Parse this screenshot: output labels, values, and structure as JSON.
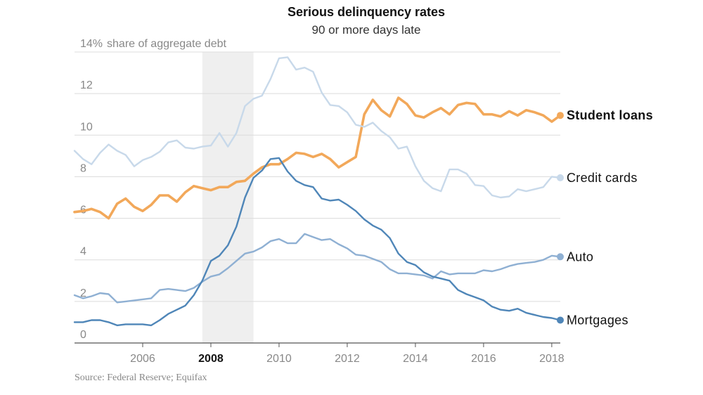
{
  "chart_data": {
    "type": "line",
    "title": "Serious delinquency rates",
    "subtitle": "90 or more days late",
    "ylabel": "share of aggregate debt",
    "ylim": [
      0,
      14
    ],
    "y_ticks": [
      0,
      2,
      4,
      6,
      8,
      10,
      12,
      14
    ],
    "y_tick_labels": [
      "0",
      "2",
      "4",
      "6",
      "8",
      "10",
      "12",
      "14%"
    ],
    "xlim": [
      2004.0,
      2018.25
    ],
    "x_ticks": [
      2006,
      2008,
      2010,
      2012,
      2014,
      2016,
      2018
    ],
    "x_tick_labels": [
      "2006",
      "2008",
      "2010",
      "2012",
      "2014",
      "2016",
      "2018"
    ],
    "highlighted_tick": "2008",
    "recession_shade": [
      2007.75,
      2009.25
    ],
    "grid": true,
    "legend": "end-of-line labels",
    "source": "Source: Federal Reserve; Equifax",
    "series": [
      {
        "name": "Student loans",
        "color": "#f2a85a",
        "bold_label": true,
        "x": [
          2004.0,
          2004.25,
          2004.5,
          2004.75,
          2005.0,
          2005.25,
          2005.5,
          2005.75,
          2006.0,
          2006.25,
          2006.5,
          2006.75,
          2007.0,
          2007.25,
          2007.5,
          2007.75,
          2008.0,
          2008.25,
          2008.5,
          2008.75,
          2009.0,
          2009.25,
          2009.5,
          2009.75,
          2010.0,
          2010.25,
          2010.5,
          2010.75,
          2011.0,
          2011.25,
          2011.5,
          2011.75,
          2012.0,
          2012.25,
          2012.5,
          2012.75,
          2013.0,
          2013.25,
          2013.5,
          2013.75,
          2014.0,
          2014.25,
          2014.5,
          2014.75,
          2015.0,
          2015.25,
          2015.5,
          2015.75,
          2016.0,
          2016.25,
          2016.5,
          2016.75,
          2017.0,
          2017.25,
          2017.5,
          2017.75,
          2018.0,
          2018.25
        ],
        "values": [
          6.3,
          6.35,
          6.45,
          6.3,
          6.0,
          6.7,
          6.95,
          6.55,
          6.35,
          6.65,
          7.1,
          7.1,
          6.8,
          7.25,
          7.55,
          7.45,
          7.35,
          7.5,
          7.5,
          7.75,
          7.8,
          8.15,
          8.45,
          8.6,
          8.6,
          8.85,
          9.15,
          9.1,
          8.95,
          9.1,
          8.85,
          8.45,
          8.7,
          8.95,
          11.0,
          11.7,
          11.2,
          10.9,
          11.8,
          11.5,
          10.95,
          10.85,
          11.1,
          11.3,
          11.0,
          11.45,
          11.55,
          11.5,
          11.0,
          11.0,
          10.9,
          11.15,
          10.95,
          11.2,
          11.1,
          10.95,
          10.65,
          10.95
        ]
      },
      {
        "name": "Credit cards",
        "color": "#c8d9ea",
        "bold_label": false,
        "x": [
          2004.0,
          2004.25,
          2004.5,
          2004.75,
          2005.0,
          2005.25,
          2005.5,
          2005.75,
          2006.0,
          2006.25,
          2006.5,
          2006.75,
          2007.0,
          2007.25,
          2007.5,
          2007.75,
          2008.0,
          2008.25,
          2008.5,
          2008.75,
          2009.0,
          2009.25,
          2009.5,
          2009.75,
          2010.0,
          2010.25,
          2010.5,
          2010.75,
          2011.0,
          2011.25,
          2011.5,
          2011.75,
          2012.0,
          2012.25,
          2012.5,
          2012.75,
          2013.0,
          2013.25,
          2013.5,
          2013.75,
          2014.0,
          2014.25,
          2014.5,
          2014.75,
          2015.0,
          2015.25,
          2015.5,
          2015.75,
          2016.0,
          2016.25,
          2016.5,
          2016.75,
          2017.0,
          2017.25,
          2017.5,
          2017.75,
          2018.0,
          2018.25
        ],
        "values": [
          9.25,
          8.85,
          8.6,
          9.15,
          9.55,
          9.25,
          9.05,
          8.5,
          8.8,
          8.95,
          9.2,
          9.65,
          9.75,
          9.4,
          9.35,
          9.45,
          9.5,
          10.1,
          9.45,
          10.1,
          11.4,
          11.75,
          11.9,
          12.7,
          13.7,
          13.75,
          13.15,
          13.25,
          13.05,
          12.05,
          11.45,
          11.4,
          11.1,
          10.5,
          10.4,
          10.6,
          10.2,
          9.9,
          9.35,
          9.45,
          8.5,
          7.8,
          7.45,
          7.3,
          8.35,
          8.35,
          8.15,
          7.6,
          7.55,
          7.1,
          7.0,
          7.05,
          7.4,
          7.3,
          7.4,
          7.5,
          8.0,
          7.95
        ]
      },
      {
        "name": "Auto",
        "color": "#8fb0d3",
        "bold_label": false,
        "x": [
          2004.0,
          2004.25,
          2004.5,
          2004.75,
          2005.0,
          2005.25,
          2005.5,
          2005.75,
          2006.0,
          2006.25,
          2006.5,
          2006.75,
          2007.0,
          2007.25,
          2007.5,
          2007.75,
          2008.0,
          2008.25,
          2008.5,
          2008.75,
          2009.0,
          2009.25,
          2009.5,
          2009.75,
          2010.0,
          2010.25,
          2010.5,
          2010.75,
          2011.0,
          2011.25,
          2011.5,
          2011.75,
          2012.0,
          2012.25,
          2012.5,
          2012.75,
          2013.0,
          2013.25,
          2013.5,
          2013.75,
          2014.0,
          2014.25,
          2014.5,
          2014.75,
          2015.0,
          2015.25,
          2015.5,
          2015.75,
          2016.0,
          2016.25,
          2016.5,
          2016.75,
          2017.0,
          2017.25,
          2017.5,
          2017.75,
          2018.0,
          2018.25
        ],
        "values": [
          2.3,
          2.15,
          2.25,
          2.4,
          2.35,
          1.95,
          2.0,
          2.05,
          2.1,
          2.15,
          2.55,
          2.6,
          2.55,
          2.5,
          2.65,
          2.95,
          3.2,
          3.3,
          3.6,
          3.95,
          4.3,
          4.4,
          4.6,
          4.9,
          5.0,
          4.8,
          4.8,
          5.25,
          5.1,
          4.95,
          5.0,
          4.75,
          4.55,
          4.25,
          4.2,
          4.05,
          3.9,
          3.55,
          3.35,
          3.35,
          3.3,
          3.25,
          3.1,
          3.45,
          3.3,
          3.35,
          3.35,
          3.35,
          3.5,
          3.45,
          3.55,
          3.7,
          3.8,
          3.85,
          3.9,
          4.0,
          4.2,
          4.15
        ]
      },
      {
        "name": "Mortgages",
        "color": "#4f86b8",
        "bold_label": false,
        "x": [
          2004.0,
          2004.25,
          2004.5,
          2004.75,
          2005.0,
          2005.25,
          2005.5,
          2005.75,
          2006.0,
          2006.25,
          2006.5,
          2006.75,
          2007.0,
          2007.25,
          2007.5,
          2007.75,
          2008.0,
          2008.25,
          2008.5,
          2008.75,
          2009.0,
          2009.25,
          2009.5,
          2009.75,
          2010.0,
          2010.25,
          2010.5,
          2010.75,
          2011.0,
          2011.25,
          2011.5,
          2011.75,
          2012.0,
          2012.25,
          2012.5,
          2012.75,
          2013.0,
          2013.25,
          2013.5,
          2013.75,
          2014.0,
          2014.25,
          2014.5,
          2014.75,
          2015.0,
          2015.25,
          2015.5,
          2015.75,
          2016.0,
          2016.25,
          2016.5,
          2016.75,
          2017.0,
          2017.25,
          2017.5,
          2017.75,
          2018.0,
          2018.25
        ],
        "values": [
          1.0,
          1.0,
          1.1,
          1.1,
          1.0,
          0.85,
          0.9,
          0.9,
          0.9,
          0.85,
          1.1,
          1.4,
          1.6,
          1.8,
          2.3,
          3.0,
          3.95,
          4.2,
          4.7,
          5.6,
          7.0,
          7.95,
          8.3,
          8.85,
          8.9,
          8.25,
          7.8,
          7.6,
          7.5,
          6.95,
          6.85,
          6.9,
          6.65,
          6.35,
          5.95,
          5.65,
          5.45,
          5.05,
          4.3,
          3.9,
          3.75,
          3.4,
          3.2,
          3.1,
          3.0,
          2.55,
          2.35,
          2.2,
          2.05,
          1.75,
          1.6,
          1.55,
          1.65,
          1.45,
          1.35,
          1.25,
          1.2,
          1.1
        ]
      }
    ]
  }
}
